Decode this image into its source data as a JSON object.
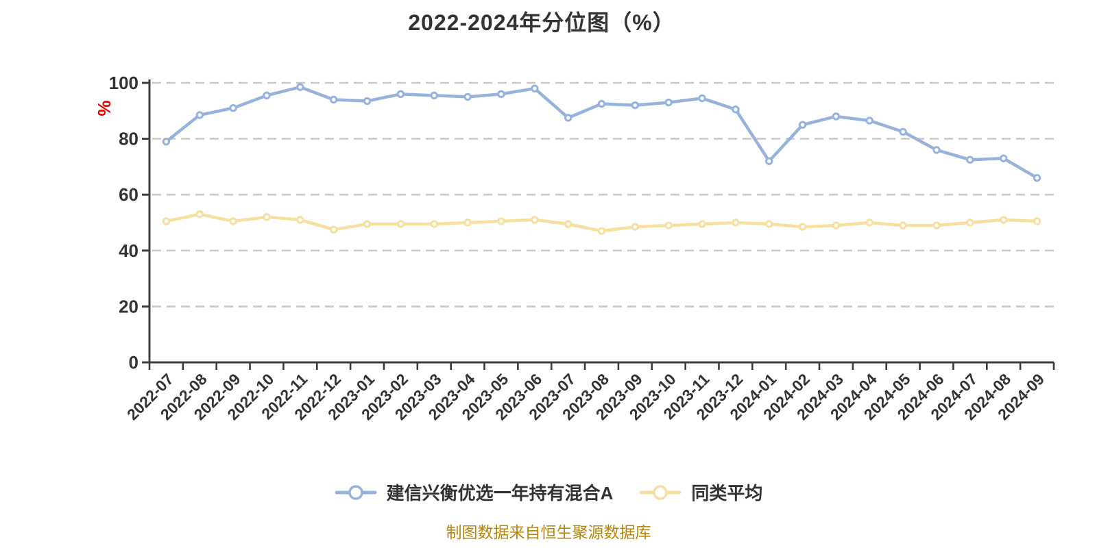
{
  "title": "2022-2024年分位图（%）",
  "footer": "制图数据来自恒生聚源数据库",
  "colors": {
    "background": "#ffffff",
    "text": "#333333",
    "axis": "#3c3c3c",
    "grid": "#c9c9c9",
    "axis_name": "#e60000",
    "footer": "#b8860b",
    "marker_fill": "#ffffff"
  },
  "chart_data": {
    "type": "line",
    "title": "2022-2024年分位图（%）",
    "ylabel": "%",
    "xlabel": "",
    "ylim": [
      0,
      100
    ],
    "yticks": [
      0,
      20,
      40,
      60,
      80,
      100
    ],
    "grid": "horizontal-dashed",
    "legend_position": "bottom",
    "categories": [
      "2022-07",
      "2022-08",
      "2022-09",
      "2022-10",
      "2022-11",
      "2022-12",
      "2023-01",
      "2023-02",
      "2023-03",
      "2023-04",
      "2023-05",
      "2023-06",
      "2023-07",
      "2023-08",
      "2023-09",
      "2023-10",
      "2023-11",
      "2023-12",
      "2024-01",
      "2024-02",
      "2024-03",
      "2024-04",
      "2024-05",
      "2024-06",
      "2024-07",
      "2024-08",
      "2024-09"
    ],
    "series": [
      {
        "name": "建信兴衡优选一年持有混合A",
        "color": "#96b3de",
        "values": [
          79,
          88.5,
          91,
          95.5,
          98.5,
          94,
          93.5,
          96,
          95.5,
          95,
          96,
          98,
          87.5,
          92.5,
          92,
          93,
          94.5,
          90.5,
          72,
          85,
          88,
          86.5,
          82.5,
          76,
          72.5,
          73,
          66
        ]
      },
      {
        "name": "同类平均",
        "color": "#f7dfa0",
        "values": [
          50.5,
          53,
          50.5,
          52,
          51,
          47.5,
          49.5,
          49.5,
          49.5,
          50,
          50.5,
          51,
          49.5,
          47,
          48.5,
          49,
          49.5,
          50,
          49.5,
          48.5,
          49,
          50,
          49,
          49,
          50,
          51,
          50.5
        ]
      }
    ]
  }
}
